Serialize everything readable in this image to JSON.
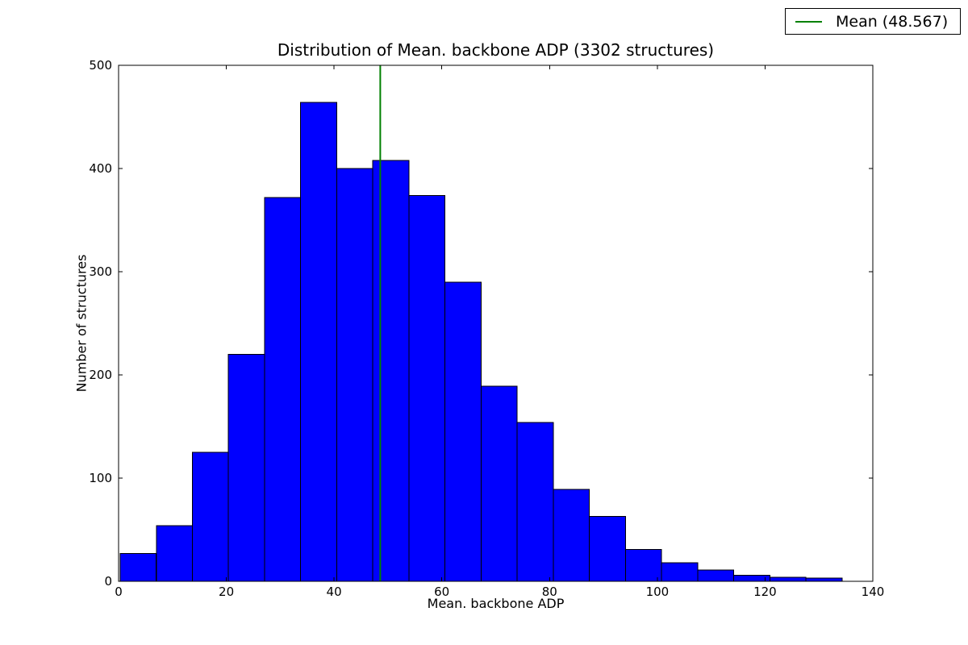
{
  "chart_data": {
    "type": "bar",
    "subtype": "histogram",
    "title": "Distribution of Mean. backbone ADP (3302 structures)",
    "xlabel": "Mean. backbone ADP",
    "ylabel": "Number of structures",
    "total_structures": 3302,
    "xlim": [
      0,
      140
    ],
    "ylim": [
      0,
      500
    ],
    "xticks": [
      0,
      20,
      40,
      60,
      80,
      100,
      120,
      140
    ],
    "yticks": [
      0,
      100,
      200,
      300,
      400,
      500
    ],
    "grid": false,
    "bin_edges": [
      0.3,
      7.0,
      13.7,
      20.4,
      27.1,
      33.8,
      40.5,
      47.2,
      53.9,
      60.6,
      67.3,
      74.0,
      80.7,
      87.4,
      94.1,
      100.8,
      107.5,
      114.2,
      120.9,
      127.6,
      134.3
    ],
    "counts": [
      27,
      54,
      125,
      220,
      372,
      464,
      400,
      408,
      374,
      290,
      189,
      154,
      89,
      63,
      31,
      18,
      11,
      6,
      4,
      3
    ],
    "bar_color": "#0000ff",
    "bar_edge_color": "#000000",
    "mean_line": {
      "value": 48.567,
      "color": "#008000",
      "label": "Mean (48.567)"
    },
    "legend": {
      "position": "top-right",
      "entries": [
        {
          "label": "Mean (48.567)",
          "color": "#008000",
          "marker": "line"
        }
      ]
    }
  }
}
